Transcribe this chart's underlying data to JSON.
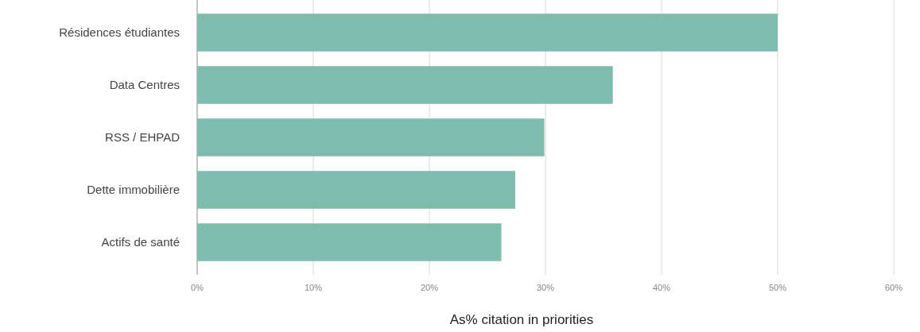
{
  "chart_data": {
    "type": "bar",
    "orientation": "horizontal",
    "xlabel": "As% citation in priorities",
    "categories": [
      "Résidences étudiantes",
      "Data Centres",
      "RSS / EHPAD",
      "Dette immobilière",
      "Actifs de santé"
    ],
    "series": [
      {
        "color": "#7fbcad",
        "values": [
          50,
          35.8,
          29.9,
          27.4,
          26.2
        ]
      }
    ],
    "xlim": [
      0,
      60
    ],
    "xticks": [
      {
        "value": 0,
        "label": "0%"
      },
      {
        "value": 10,
        "label": "10%"
      },
      {
        "value": 20,
        "label": "20%"
      },
      {
        "value": 30,
        "label": "30%"
      },
      {
        "value": 40,
        "label": "40%"
      },
      {
        "value": 50,
        "label": "50%"
      },
      {
        "value": 60,
        "label": "60%"
      }
    ],
    "grid": "x"
  }
}
